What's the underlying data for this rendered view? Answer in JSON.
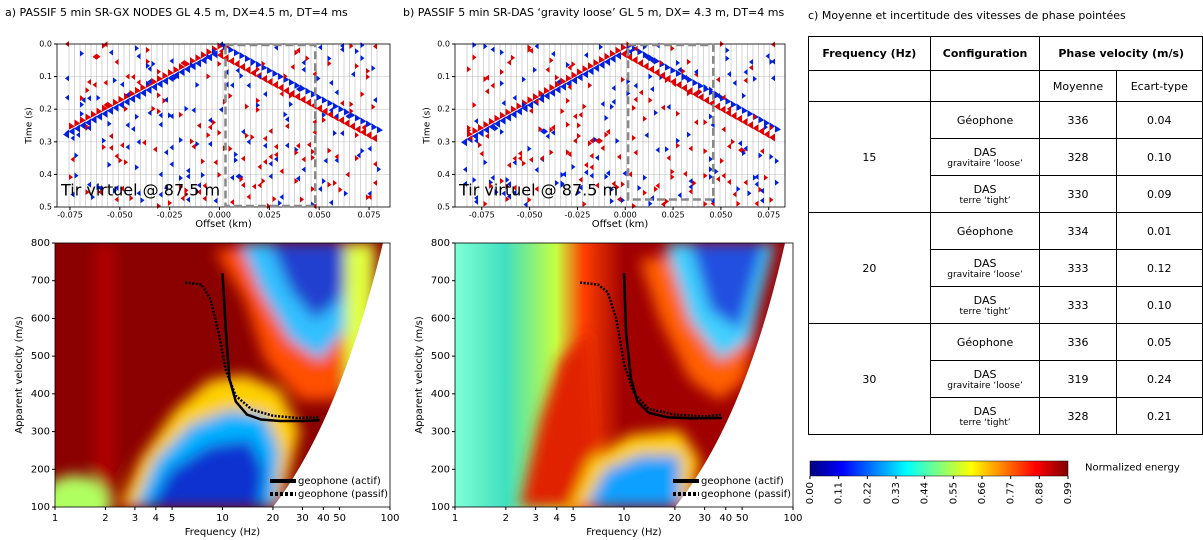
{
  "chart_data": [
    {
      "type": "seismogram",
      "title": "a) PASSIF 5 min SR-GX NODES GL 4.5 m, DX=4.5 m, DT=4 ms",
      "x_label": "Offset (km)",
      "y_label": "Time (s)",
      "xlim": [
        -0.0815,
        0.0855
      ],
      "xticks": [
        -0.075,
        {
          "value": -0.05,
          "label": "-0.050"
        },
        -0.025,
        {
          "value": 0,
          "label": "0.000"
        },
        0.025,
        {
          "value": 0.05,
          "label": "0.050"
        },
        0.075
      ],
      "ylim": [
        0,
        0.5
      ],
      "yticks": [
        {
          "value": 0,
          "label": "0.0"
        },
        0.1,
        0.2,
        0.3,
        0.4,
        0.5
      ],
      "grid": true,
      "annotation": "Tir virtuel @ 87.5 m",
      "window": {
        "offset": [
          0.003,
          0.048
        ],
        "time": [
          0,
          0.5
        ]
      }
    },
    {
      "type": "dispersion",
      "x_label": "Frequency (Hz)",
      "y_label": "Apparent velocity (m/s)",
      "x_scale": "log",
      "xlim": [
        1,
        100
      ],
      "xticks": [
        1,
        2,
        3,
        4,
        5,
        10,
        20,
        30,
        40,
        50,
        100
      ],
      "ylim": [
        100,
        800
      ],
      "yticks": [
        100,
        200,
        300,
        400,
        500,
        600,
        700,
        800
      ],
      "legend": "lower right",
      "series": [
        {
          "name": "geophone (actif)",
          "color": "#000000",
          "style": "solid",
          "x": [
            10,
            10.5,
            11,
            12,
            14,
            17,
            22,
            30,
            38
          ],
          "y": [
            720,
            560,
            440,
            380,
            345,
            332,
            328,
            328,
            330
          ]
        },
        {
          "name": "geophone (passif)",
          "color": "#000000",
          "style": "dotted",
          "x": [
            6,
            7.5,
            8.5,
            9.5,
            10.5,
            12,
            15,
            20,
            28,
            38
          ],
          "y": [
            695,
            690,
            650,
            560,
            460,
            395,
            358,
            342,
            336,
            338
          ]
        }
      ]
    },
    {
      "type": "seismogram",
      "title": "b) PASSIF 5 min  SR-DAS ‘gravity loose’ GL 5 m, DX= 4.3 m, DT=4 ms",
      "x_label": "Offset (km)",
      "y_label": "Time (s)",
      "xlim": [
        -0.089,
        0.0835
      ],
      "xticks": [
        -0.075,
        {
          "value": -0.05,
          "label": "-0.050"
        },
        -0.025,
        {
          "value": 0,
          "label": "0.000"
        },
        0.025,
        {
          "value": 0.05,
          "label": "0.050"
        },
        0.075
      ],
      "ylim": [
        0,
        0.5
      ],
      "yticks": [
        {
          "value": 0,
          "label": "0.0"
        },
        0.1,
        0.2,
        0.3,
        0.4,
        0.5
      ],
      "grid": true,
      "annotation": "Tir virtuel @ 87.5 m",
      "window": {
        "offset": [
          0.0015,
          0.046
        ],
        "time": [
          0,
          0.48
        ]
      }
    },
    {
      "type": "dispersion",
      "x_label": "Frequency (Hz)",
      "y_label": "Apparent velocity (m/s)",
      "x_scale": "log",
      "xlim": [
        1,
        100
      ],
      "xticks": [
        1,
        2,
        3,
        4,
        5,
        10,
        20,
        30,
        40,
        50,
        100
      ],
      "ylim": [
        100,
        800
      ],
      "yticks": [
        100,
        200,
        300,
        400,
        500,
        600,
        700,
        800
      ],
      "legend": "lower right",
      "series": [
        {
          "name": "geophone (actif)",
          "color": "#000000",
          "style": "solid",
          "x": [
            10,
            10.3,
            11,
            12,
            14,
            18,
            25,
            38
          ],
          "y": [
            720,
            560,
            440,
            380,
            350,
            338,
            335,
            336
          ]
        },
        {
          "name": "geophone (passif)",
          "color": "#000000",
          "style": "dotted",
          "x": [
            5.5,
            7,
            8,
            9,
            10,
            11.5,
            14,
            20,
            30,
            38
          ],
          "y": [
            695,
            690,
            670,
            600,
            480,
            400,
            360,
            345,
            340,
            345
          ]
        }
      ]
    },
    {
      "type": "colorbar",
      "label": "Normalized energy",
      "colormap": "jet",
      "lim": [
        0,
        0.99
      ],
      "ticks": [
        {
          "value": 0,
          "label": "0.00"
        },
        0.11,
        0.22,
        0.33,
        0.44,
        0.55,
        0.66,
        0.77,
        0.88,
        0.99
      ]
    }
  ],
  "table": {
    "title": "c) Moyenne et incertitude des vitesses de phase pointées",
    "header": [
      "Frequency (Hz)",
      "Configuration",
      "Phase velocity (m/s)"
    ],
    "subheader": [
      "Moyenne",
      "Ecart-type"
    ],
    "groups": [
      {
        "frequency": "15",
        "rows": [
          {
            "config": "Géophone",
            "mean": "336",
            "std": "0.04"
          },
          {
            "config": "DAS",
            "detail": "gravitaire ‘loose’",
            "mean": "328",
            "std": "0.10"
          },
          {
            "config": "DAS",
            "detail": "terre ‘tight’",
            "mean": "330",
            "std": "0.09"
          }
        ]
      },
      {
        "frequency": "20",
        "rows": [
          {
            "config": "Géophone",
            "mean": "334",
            "std": "0.01"
          },
          {
            "config": "DAS",
            "detail": "gravitaire ‘loose’",
            "mean": "333",
            "std": "0.12"
          },
          {
            "config": "DAS",
            "detail": "terre ‘tight’",
            "mean": "333",
            "std": "0.10"
          }
        ]
      },
      {
        "frequency": "30",
        "rows": [
          {
            "config": "Géophone",
            "mean": "336",
            "std": "0.05"
          },
          {
            "config": "DAS",
            "detail": "gravitaire ‘loose’",
            "mean": "319",
            "std": "0.24"
          },
          {
            "config": "DAS",
            "detail": "terre ‘tight’",
            "mean": "328",
            "std": "0.21"
          }
        ]
      }
    ]
  }
}
